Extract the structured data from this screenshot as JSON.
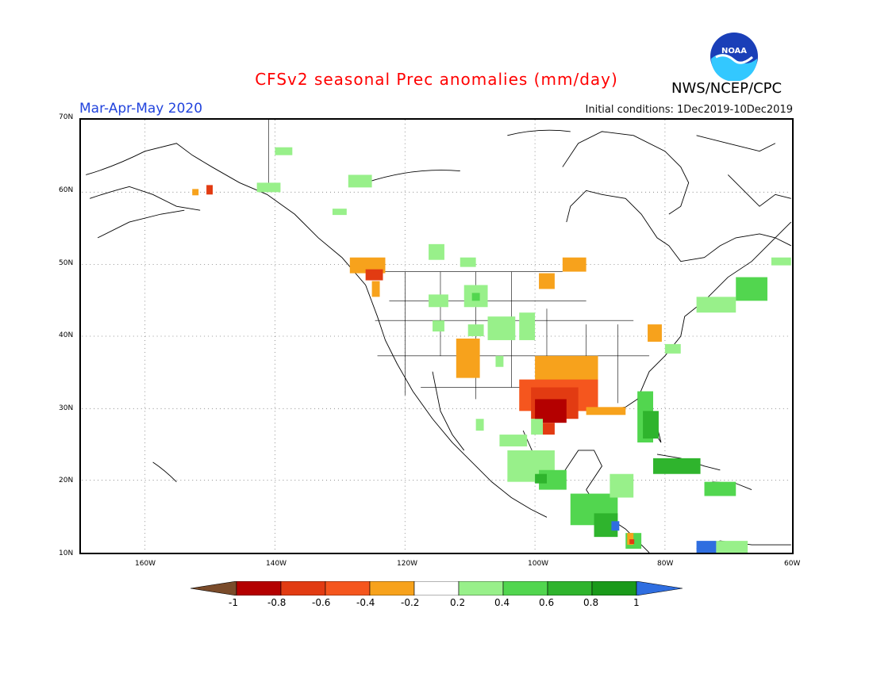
{
  "header": {
    "title": "CFSv2 seasonal Prec anomalies (mm/day)",
    "period": "Mar-Apr-May 2020",
    "initial_conditions": "Initial conditions: 1Dec2019-10Dec2019",
    "agency": "NWS/NCEP/CPC",
    "logo_text": "NOAA"
  },
  "axes": {
    "lat_labels": [
      "70N",
      "60N",
      "50N",
      "40N",
      "30N",
      "20N",
      "10N"
    ],
    "lon_labels": [
      "160W",
      "140W",
      "120W",
      "100W",
      "80W",
      "60W"
    ]
  },
  "legend": {
    "labels": [
      "-1",
      "-0.8",
      "-0.6",
      "-0.4",
      "-0.2",
      "0.2",
      "0.4",
      "0.6",
      "0.8",
      "1"
    ],
    "colors": {
      "lt_neg1": "#7a4b2a",
      "neg08": "#b40000",
      "neg06": "#e23b12",
      "neg04": "#f5561e",
      "neg02": "#f7a21c",
      "neutral": "#ffffff",
      "pos02": "#98f08a",
      "pos04": "#52d64f",
      "pos06": "#2fb42d",
      "pos08": "#1a9a1a",
      "gt_pos1": "#2f6ee0"
    }
  }
}
